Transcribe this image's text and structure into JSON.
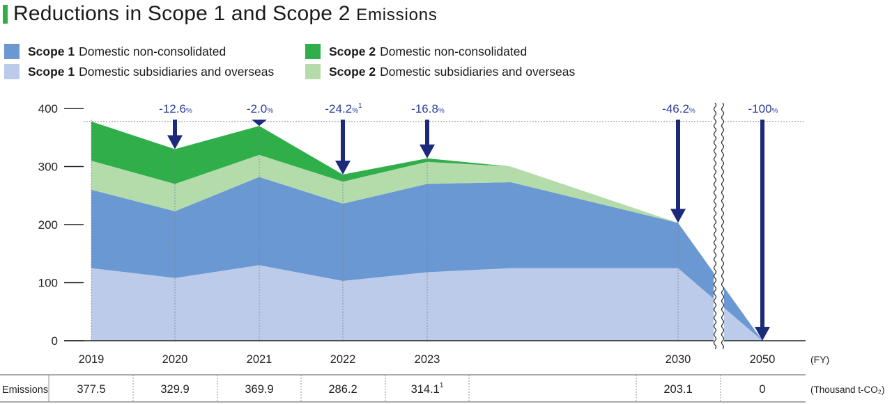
{
  "title": {
    "main": "Reductions in Scope 1 and Scope 2",
    "suffix": "Emissions"
  },
  "legend": [
    {
      "bold": "Scope 1",
      "text": "Domestic non-consolidated",
      "color": "#6a98d2"
    },
    {
      "bold": "Scope 1",
      "text": "Domestic subsidiaries and overseas",
      "color": "#bccbe9"
    },
    {
      "bold": "Scope 2",
      "text": "Domestic non-consolidated",
      "color": "#2fae4a"
    },
    {
      "bold": "Scope 2",
      "text": "Domestic subsidiaries and overseas",
      "color": "#b4dcaa"
    }
  ],
  "chart_data": {
    "type": "area",
    "stacked": true,
    "unit_label": "(FY)",
    "y_ticks": [
      0,
      100,
      200,
      300,
      400
    ],
    "ylim": [
      0,
      400
    ],
    "reference_line": 377.5,
    "x_points": [
      "2019",
      "2020",
      "2021",
      "2022",
      "2023",
      "",
      "2030",
      "2050"
    ],
    "x_tick_labels": [
      "2019",
      "2020",
      "2021",
      "2022",
      "2023",
      "",
      "2030",
      "2050"
    ],
    "series": [
      {
        "name": "Scope 1 Domestic subsidiaries and overseas",
        "color": "#bccbe9",
        "values": [
          125,
          108,
          130,
          103,
          118,
          125,
          125,
          0
        ]
      },
      {
        "name": "Scope 1 Domestic non-consolidated",
        "color": "#6a98d2",
        "values": [
          135,
          115,
          152,
          133,
          152,
          148,
          78,
          0
        ]
      },
      {
        "name": "Scope 2 Domestic subsidiaries and overseas",
        "color": "#b4dcaa",
        "values": [
          50,
          47,
          38,
          38,
          38,
          27,
          0,
          0
        ]
      },
      {
        "name": "Scope 2 Domestic non-consolidated",
        "color": "#2fae4a",
        "values": [
          67.5,
          59.9,
          49.9,
          12.2,
          6.1,
          0,
          0,
          0
        ]
      }
    ],
    "reductions": [
      {
        "x": "2020",
        "label": "-12.6",
        "unit": "%",
        "sup": "",
        "arrow_to": 329.9
      },
      {
        "x": "2021",
        "label": "-2.0",
        "unit": "%",
        "sup": "",
        "arrow_to": 369.9
      },
      {
        "x": "2022",
        "label": "-24.2",
        "unit": "%",
        "sup": "1",
        "arrow_to": 286.2
      },
      {
        "x": "2023",
        "label": "-16.8",
        "unit": "%",
        "sup": "",
        "arrow_to": 314.1
      },
      {
        "x": "2030",
        "label": "-46.2",
        "unit": "%",
        "sup": "",
        "arrow_to": 203.1
      },
      {
        "x": "2050",
        "label": "-100",
        "unit": "%",
        "sup": "",
        "arrow_to": 0
      }
    ],
    "table": {
      "row_label": "Emissions",
      "unit": "(Thousand t-CO₂)",
      "cells": [
        {
          "value": "377.5",
          "sup": ""
        },
        {
          "value": "329.9",
          "sup": ""
        },
        {
          "value": "369.9",
          "sup": ""
        },
        {
          "value": "286.2",
          "sup": ""
        },
        {
          "value": "314.1",
          "sup": "1"
        },
        {
          "value": "",
          "sup": ""
        },
        {
          "value": "203.1",
          "sup": ""
        },
        {
          "value": "0",
          "sup": ""
        }
      ]
    },
    "colors": {
      "arrow": "#1c2a7a",
      "reduction_text": "#2a3c9a"
    }
  }
}
